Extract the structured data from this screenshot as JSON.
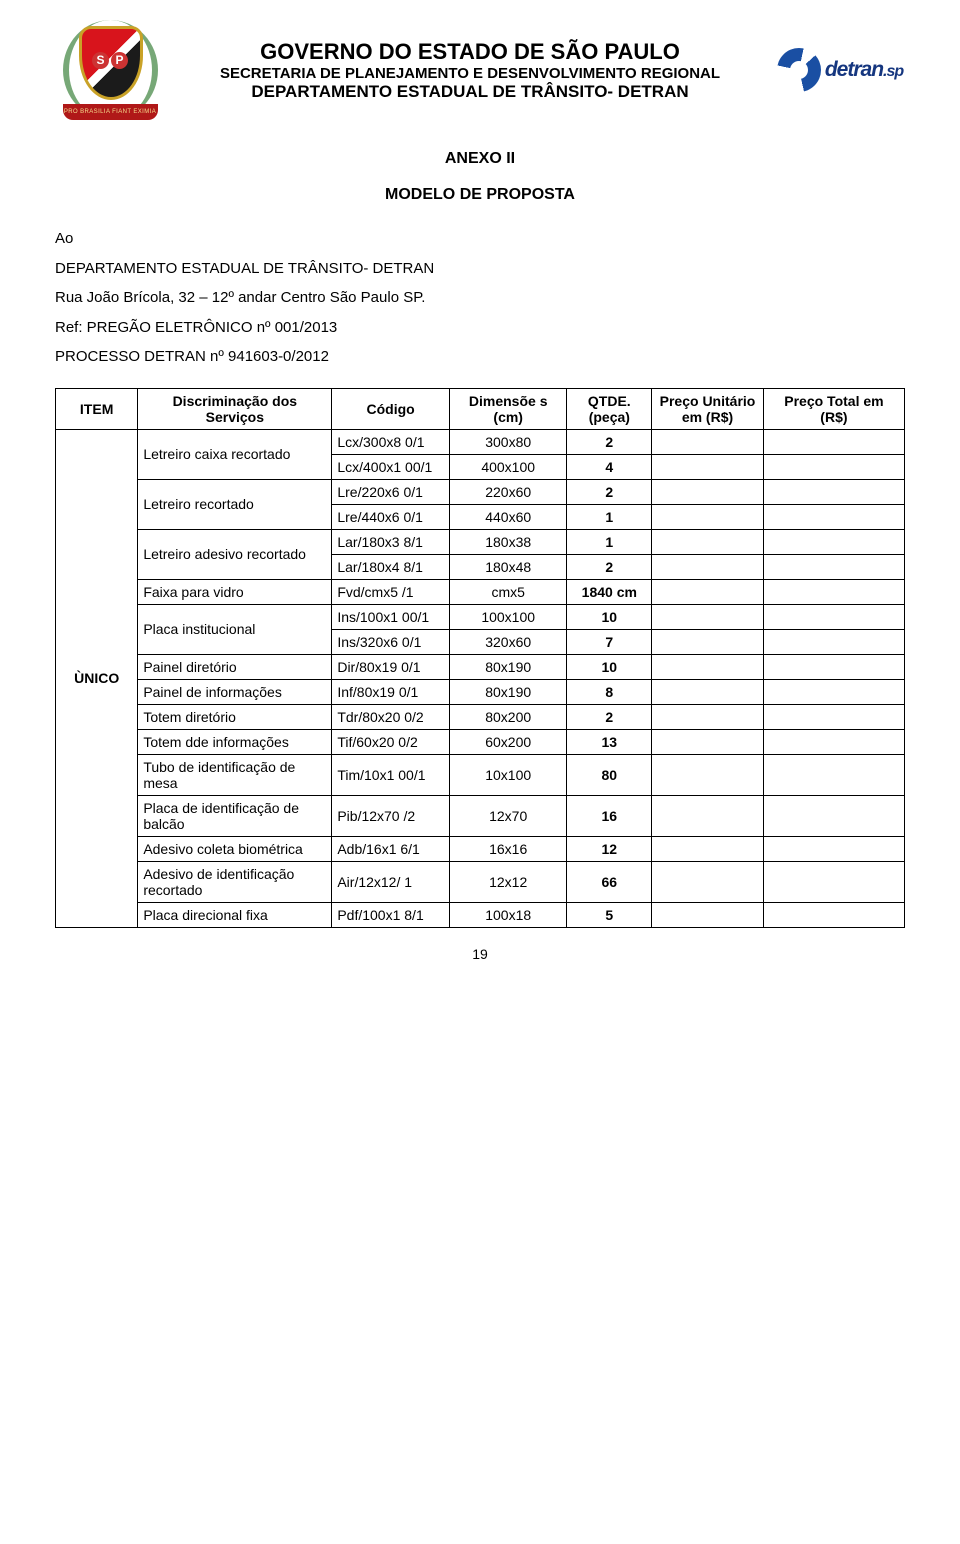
{
  "header": {
    "line1": "GOVERNO DO ESTADO DE SÃO PAULO",
    "line2": "SECRETARIA DE PLANEJAMENTO E DESENVOLVIMENTO REGIONAL",
    "line3": "DEPARTAMENTO ESTADUAL DE TRÂNSITO- DETRAN",
    "crest_banner": "PRO BRASILIA FIANT EXIMIA",
    "crest_sp": "SP",
    "detran_word": "detran",
    "detran_suffix": ".sp"
  },
  "titles": {
    "anexo": "ANEXO II",
    "modelo": "MODELO DE PROPOSTA"
  },
  "intro": {
    "ao": "Ao",
    "dept": "DEPARTAMENTO ESTADUAL DE TRÂNSITO- DETRAN",
    "address": "Rua João Brícola, 32 – 12º andar Centro São Paulo SP.",
    "ref": "Ref: PREGÃO ELETRÔNICO nº 001/2013",
    "processo": "PROCESSO DETRAN nº 941603-0/2012"
  },
  "table": {
    "headers": {
      "item": "ITEM",
      "disc": "Discriminação dos Serviços",
      "cod": "Código",
      "dim": "Dimensõe s (cm)",
      "qtde": "QTDE. (peça)",
      "pu": "Preço Unitário em (R$)",
      "pt": "Preço Total em (R$)"
    },
    "item_label": "ÙNICO",
    "groups": [
      {
        "desc": "Letreiro caixa recortado",
        "rows": [
          {
            "cod": "Lcx/300x8 0/1",
            "dim": "300x80",
            "qtde": "2"
          },
          {
            "cod": "Lcx/400x1 00/1",
            "dim": "400x100",
            "qtde": "4"
          }
        ]
      },
      {
        "desc": "Letreiro recortado",
        "rows": [
          {
            "cod": "Lre/220x6 0/1",
            "dim": "220x60",
            "qtde": "2"
          },
          {
            "cod": "Lre/440x6 0/1",
            "dim": "440x60",
            "qtde": "1"
          }
        ]
      },
      {
        "desc": "Letreiro adesivo recortado",
        "rows": [
          {
            "cod": "Lar/180x3 8/1",
            "dim": "180x38",
            "qtde": "1"
          },
          {
            "cod": "Lar/180x4 8/1",
            "dim": "180x48",
            "qtde": "2"
          }
        ]
      },
      {
        "desc": "Faixa para vidro",
        "rows": [
          {
            "cod": "Fvd/cmx5 /1",
            "dim": "cmx5",
            "qtde": "1840 cm"
          }
        ]
      },
      {
        "desc": "Placa institucional",
        "rows": [
          {
            "cod": "Ins/100x1 00/1",
            "dim": "100x100",
            "qtde": "10"
          },
          {
            "cod": "Ins/320x6 0/1",
            "dim": "320x60",
            "qtde": "7"
          }
        ]
      },
      {
        "desc": "Painel diretório",
        "rows": [
          {
            "cod": "Dir/80x19 0/1",
            "dim": "80x190",
            "qtde": "10"
          }
        ]
      },
      {
        "desc": "Painel de informações",
        "rows": [
          {
            "cod": "Inf/80x19 0/1",
            "dim": "80x190",
            "qtde": "8"
          }
        ]
      },
      {
        "desc": "Totem diretório",
        "rows": [
          {
            "cod": "Tdr/80x20 0/2",
            "dim": "80x200",
            "qtde": "2"
          }
        ]
      },
      {
        "desc": "Totem dde informações",
        "rows": [
          {
            "cod": "Tif/60x20 0/2",
            "dim": "60x200",
            "qtde": "13"
          }
        ]
      },
      {
        "desc": "Tubo de identificação de mesa",
        "rows": [
          {
            "cod": "Tim/10x1 00/1",
            "dim": "10x100",
            "qtde": "80"
          }
        ]
      },
      {
        "desc": "Placa de identificação de balcão",
        "rows": [
          {
            "cod": "Pib/12x70 /2",
            "dim": "12x70",
            "qtde": "16"
          }
        ]
      },
      {
        "desc": "Adesivo coleta biométrica",
        "rows": [
          {
            "cod": "Adb/16x1 6/1",
            "dim": "16x16",
            "qtde": "12"
          }
        ]
      },
      {
        "desc": "Adesivo de identificação recortado",
        "rows": [
          {
            "cod": "Air/12x12/ 1",
            "dim": "12x12",
            "qtde": "66"
          }
        ]
      },
      {
        "desc": "Placa direcional fixa",
        "rows": [
          {
            "cod": "Pdf/100x1 8/1",
            "dim": "100x18",
            "qtde": "5"
          }
        ]
      }
    ]
  },
  "page_number": "19",
  "styling": {
    "page_bg": "#ffffff",
    "text_color": "#000000",
    "border_color": "#000000",
    "header_title1_fontsize": 22,
    "header_title2_fontsize": 15,
    "header_title3_fontsize": 17,
    "body_fontsize": 15,
    "table_fontsize": 14,
    "crest_colors": {
      "red": "#d8141c",
      "black": "#1b1b1b",
      "gold": "#c9a227",
      "green": "#2f7a2f",
      "banner_bg": "#b01818",
      "banner_fg": "#f6dd8e"
    },
    "detran_colors": {
      "blue": "#1a4fa3",
      "text": "#15367f"
    }
  }
}
